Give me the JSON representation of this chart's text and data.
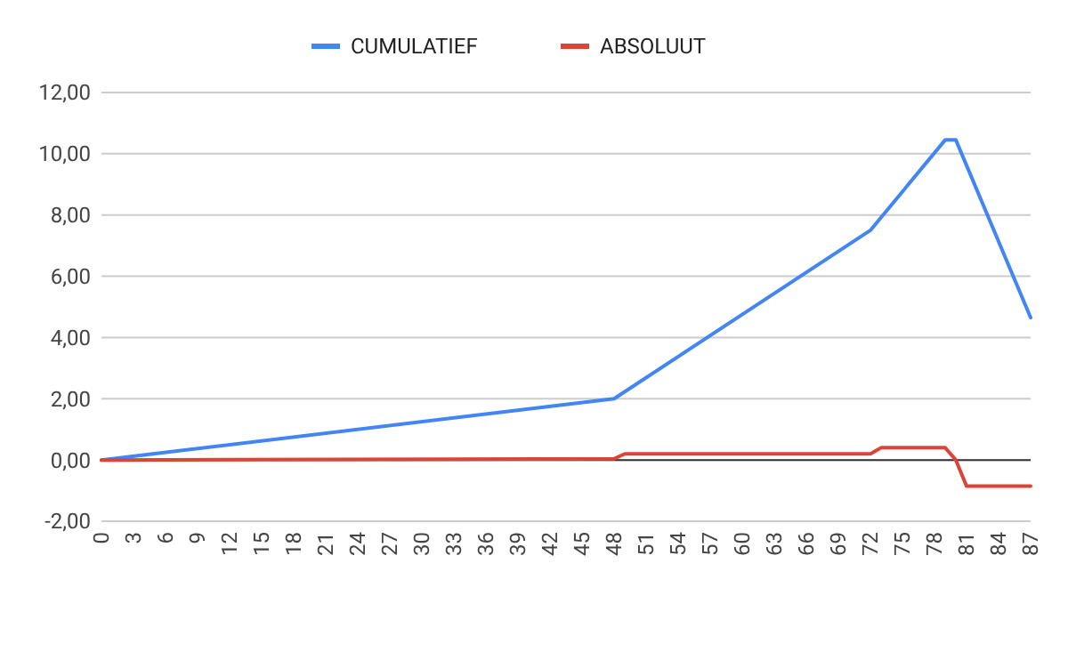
{
  "chart_data": {
    "type": "line",
    "legend": "top",
    "grid": "y",
    "ylim": [
      -2,
      12
    ],
    "yticks": [
      {
        "value": -2,
        "label": "-2,00"
      },
      {
        "value": 0,
        "label": "0,00"
      },
      {
        "value": 2,
        "label": "2,00"
      },
      {
        "value": 4,
        "label": "4,00"
      },
      {
        "value": 6,
        "label": "6,00"
      },
      {
        "value": 8,
        "label": "8,00"
      },
      {
        "value": 10,
        "label": "10,00"
      },
      {
        "value": 12,
        "label": "12,00"
      }
    ],
    "xlim": [
      0,
      87
    ],
    "xticks": [
      0,
      3,
      6,
      9,
      12,
      15,
      18,
      21,
      24,
      27,
      30,
      33,
      36,
      39,
      42,
      45,
      48,
      51,
      54,
      57,
      60,
      63,
      66,
      69,
      72,
      75,
      78,
      81,
      84,
      87
    ],
    "ref_lines": [
      {
        "axis": "y",
        "value": 0,
        "color": "#333333"
      }
    ],
    "series": [
      {
        "name": "CUMULATIEF",
        "color": "#4285f4",
        "x": [
          0,
          48,
          72,
          79,
          80,
          87
        ],
        "values": [
          0,
          2.0,
          7.5,
          10.45,
          10.45,
          4.65
        ]
      },
      {
        "name": "ABSOLUUT",
        "color": "#db4437",
        "x": [
          0,
          48,
          49,
          72,
          73,
          79,
          80,
          81,
          87
        ],
        "values": [
          0,
          0.04,
          0.2,
          0.2,
          0.4,
          0.4,
          0,
          -0.85,
          -0.85
        ]
      }
    ]
  }
}
